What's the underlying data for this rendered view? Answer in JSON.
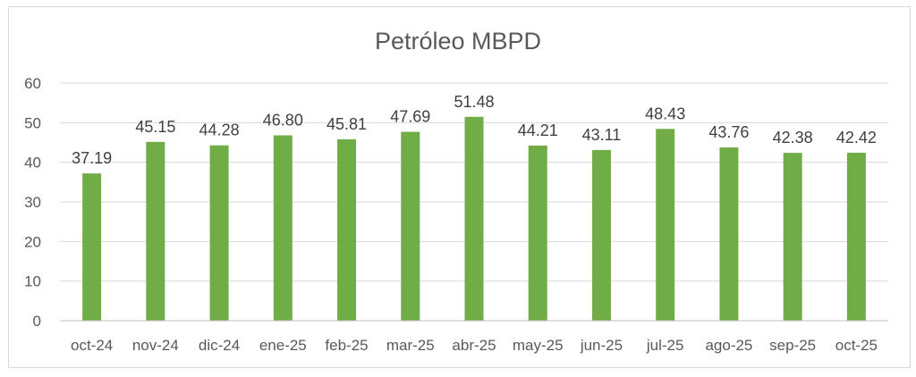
{
  "chart_data": {
    "type": "bar",
    "title": "Petróleo MBPD",
    "xlabel": "",
    "ylabel": "",
    "categories": [
      "oct-24",
      "nov-24",
      "dic-24",
      "ene-25",
      "feb-25",
      "mar-25",
      "abr-25",
      "may-25",
      "jun-25",
      "jul-25",
      "ago-25",
      "sep-25",
      "oct-25"
    ],
    "values": [
      37.19,
      45.15,
      44.28,
      46.8,
      45.81,
      47.69,
      51.48,
      44.21,
      43.11,
      48.43,
      43.76,
      42.38,
      42.42
    ],
    "data_labels": [
      "37.19",
      "45.15",
      "44.28",
      "46.80",
      "45.81",
      "47.69",
      "51.48",
      "44.21",
      "43.11",
      "48.43",
      "43.76",
      "42.38",
      "42.42"
    ],
    "ylim": [
      0,
      60
    ],
    "yticks": [
      0,
      10,
      20,
      30,
      40,
      50,
      60
    ],
    "ytick_labels": [
      "0",
      "10",
      "20",
      "30",
      "40",
      "50",
      "60"
    ],
    "grid": true,
    "legend": "none",
    "bar_color": "#70ad47"
  }
}
